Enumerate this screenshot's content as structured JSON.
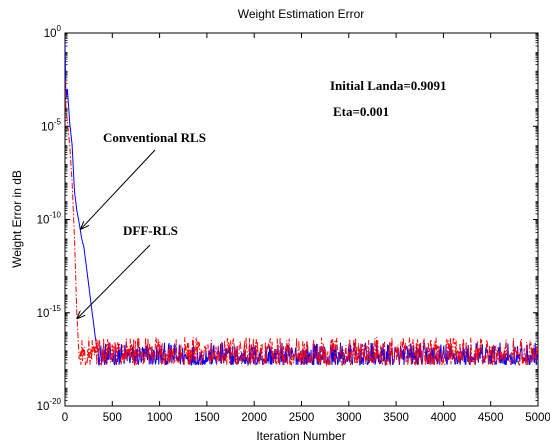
{
  "chart_data": {
    "type": "line",
    "title": "Weight Estimation Error",
    "xlabel": "Iteration Number",
    "ylabel": "Weight Error in dB",
    "xlim": [
      0,
      5000
    ],
    "ylim_log10": [
      -20,
      0
    ],
    "y_scale": "log",
    "grid": false,
    "x_ticks": [
      "0",
      "500",
      "1000",
      "1500",
      "2000",
      "2500",
      "3000",
      "3500",
      "4000",
      "4500",
      "5000"
    ],
    "y_ticks": [
      {
        "base": "10",
        "exp": "0"
      },
      {
        "base": "10",
        "exp": "-5"
      },
      {
        "base": "10",
        "exp": "-10"
      },
      {
        "base": "10",
        "exp": "-15"
      },
      {
        "base": "10",
        "exp": "-20"
      }
    ],
    "series": [
      {
        "name": "Conventional RLS",
        "color": "#0000ff",
        "style": "solid",
        "x": [
          0,
          10,
          25,
          50,
          75,
          100,
          125,
          150,
          175,
          200,
          225,
          250,
          275,
          300,
          325,
          350
        ],
        "log10_y": [
          -0.5,
          -3.5,
          -3.0,
          -4.8,
          -6.0,
          -8.5,
          -9.5,
          -10.2,
          -11.0,
          -11.5,
          -12.5,
          -13.5,
          -14.5,
          -15.5,
          -16.5,
          -17.0
        ],
        "noise_floor_log10": [
          -17.8,
          -16.6
        ]
      },
      {
        "name": "DFF-RLS",
        "color": "#ff0000",
        "style": "dashdot",
        "x": [
          0,
          10,
          25,
          50,
          75,
          100,
          125,
          150
        ],
        "log10_y": [
          -2.5,
          -4.0,
          -4.8,
          -6.0,
          -8.0,
          -11.0,
          -15.0,
          -17.5
        ],
        "noise_floor_log10": [
          -17.8,
          -16.3
        ]
      }
    ],
    "annotations": [
      {
        "text": "Initial Landa=0.9091",
        "kind": "label"
      },
      {
        "text": "Eta=0.001",
        "kind": "label"
      },
      {
        "text": "Conventional RLS",
        "kind": "arrow",
        "target_x": 170,
        "target_log10_y": -10.5
      },
      {
        "text": "DFF-RLS",
        "kind": "arrow",
        "target_x": 130,
        "target_log10_y": -15.3
      }
    ]
  }
}
